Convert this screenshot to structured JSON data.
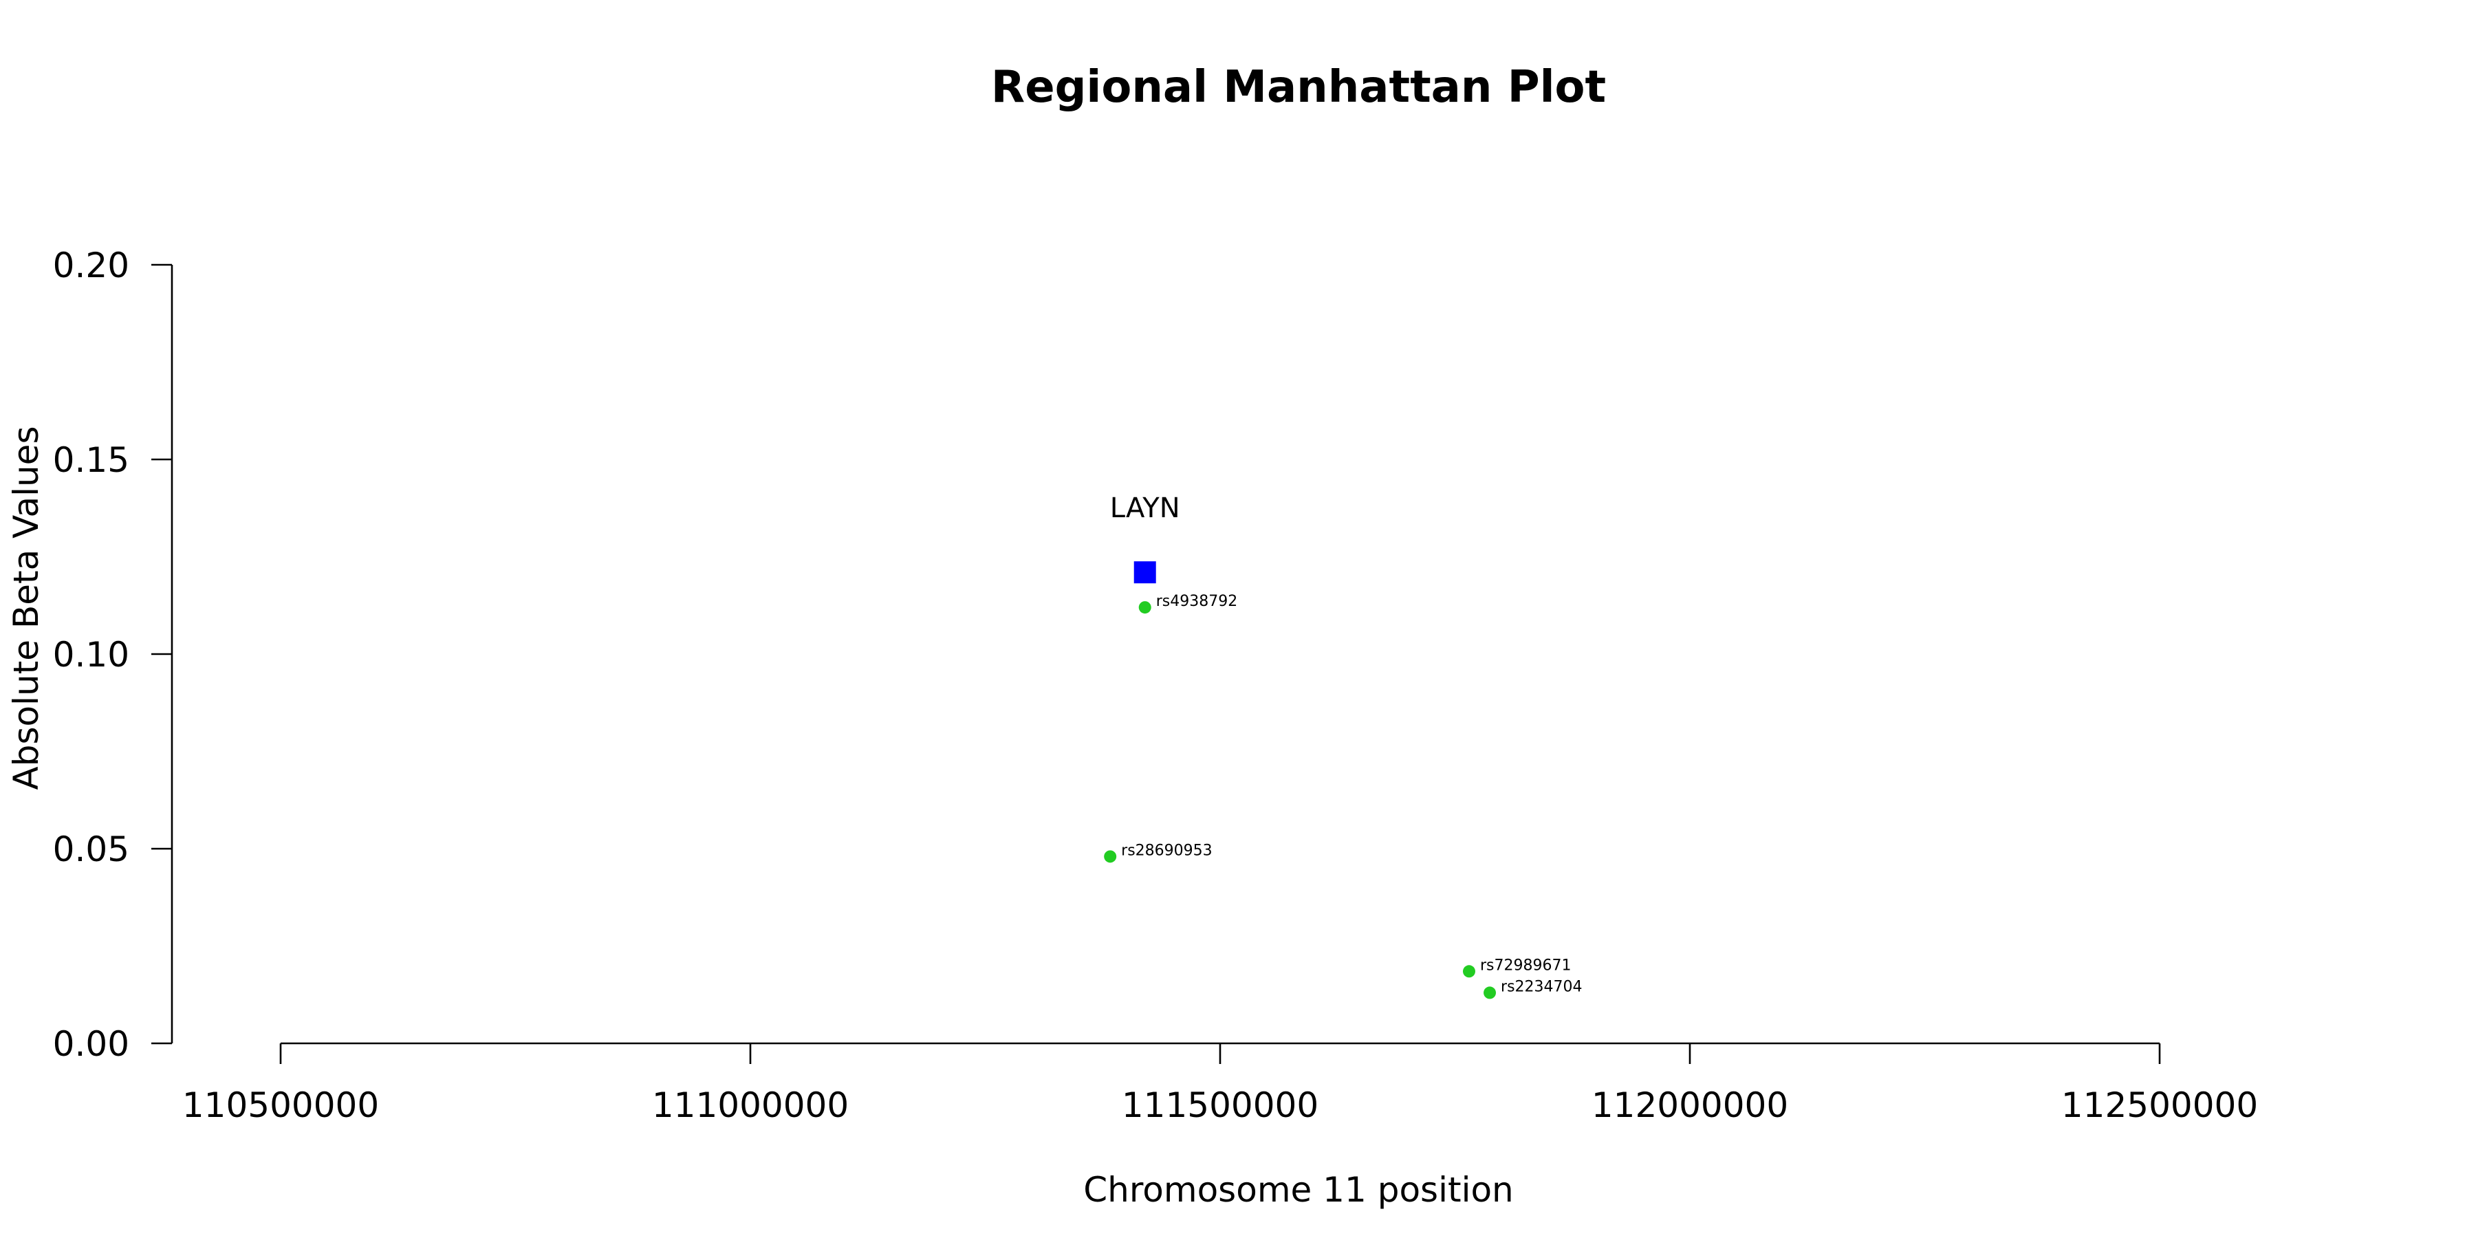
{
  "chart_data": {
    "type": "scatter",
    "title": "Regional Manhattan Plot",
    "xlabel": "Chromosome 11 position",
    "ylabel": "Absolute Beta Values",
    "xlim": [
      110500000,
      112500000
    ],
    "ylim": [
      0,
      0.2
    ],
    "x_ticks": [
      110500000,
      111000000,
      111500000,
      112000000,
      112500000
    ],
    "x_tick_labels": [
      "110500000",
      "111000000",
      "111500000",
      "112000000",
      "112500000"
    ],
    "y_ticks": [
      0,
      0.05,
      0.1,
      0.15,
      0.2
    ],
    "y_tick_labels": [
      "0.00",
      "0.05",
      "0.10",
      "0.15",
      "0.20"
    ],
    "grid": false,
    "legend": "none",
    "gene": {
      "label": "LAYN",
      "x": 111420000,
      "y": 0.121,
      "marker": "square",
      "color": "#0000ff"
    },
    "snps": [
      {
        "label": "rs4938792",
        "x": 111420000,
        "y": 0.112,
        "color": "#22cc22"
      },
      {
        "label": "rs28690953",
        "x": 111383000,
        "y": 0.048,
        "color": "#22cc22"
      },
      {
        "label": "rs72989671",
        "x": 111765000,
        "y": 0.0185,
        "color": "#22cc22"
      },
      {
        "label": "rs2234704",
        "x": 111787000,
        "y": 0.013,
        "color": "#22cc22"
      }
    ]
  }
}
